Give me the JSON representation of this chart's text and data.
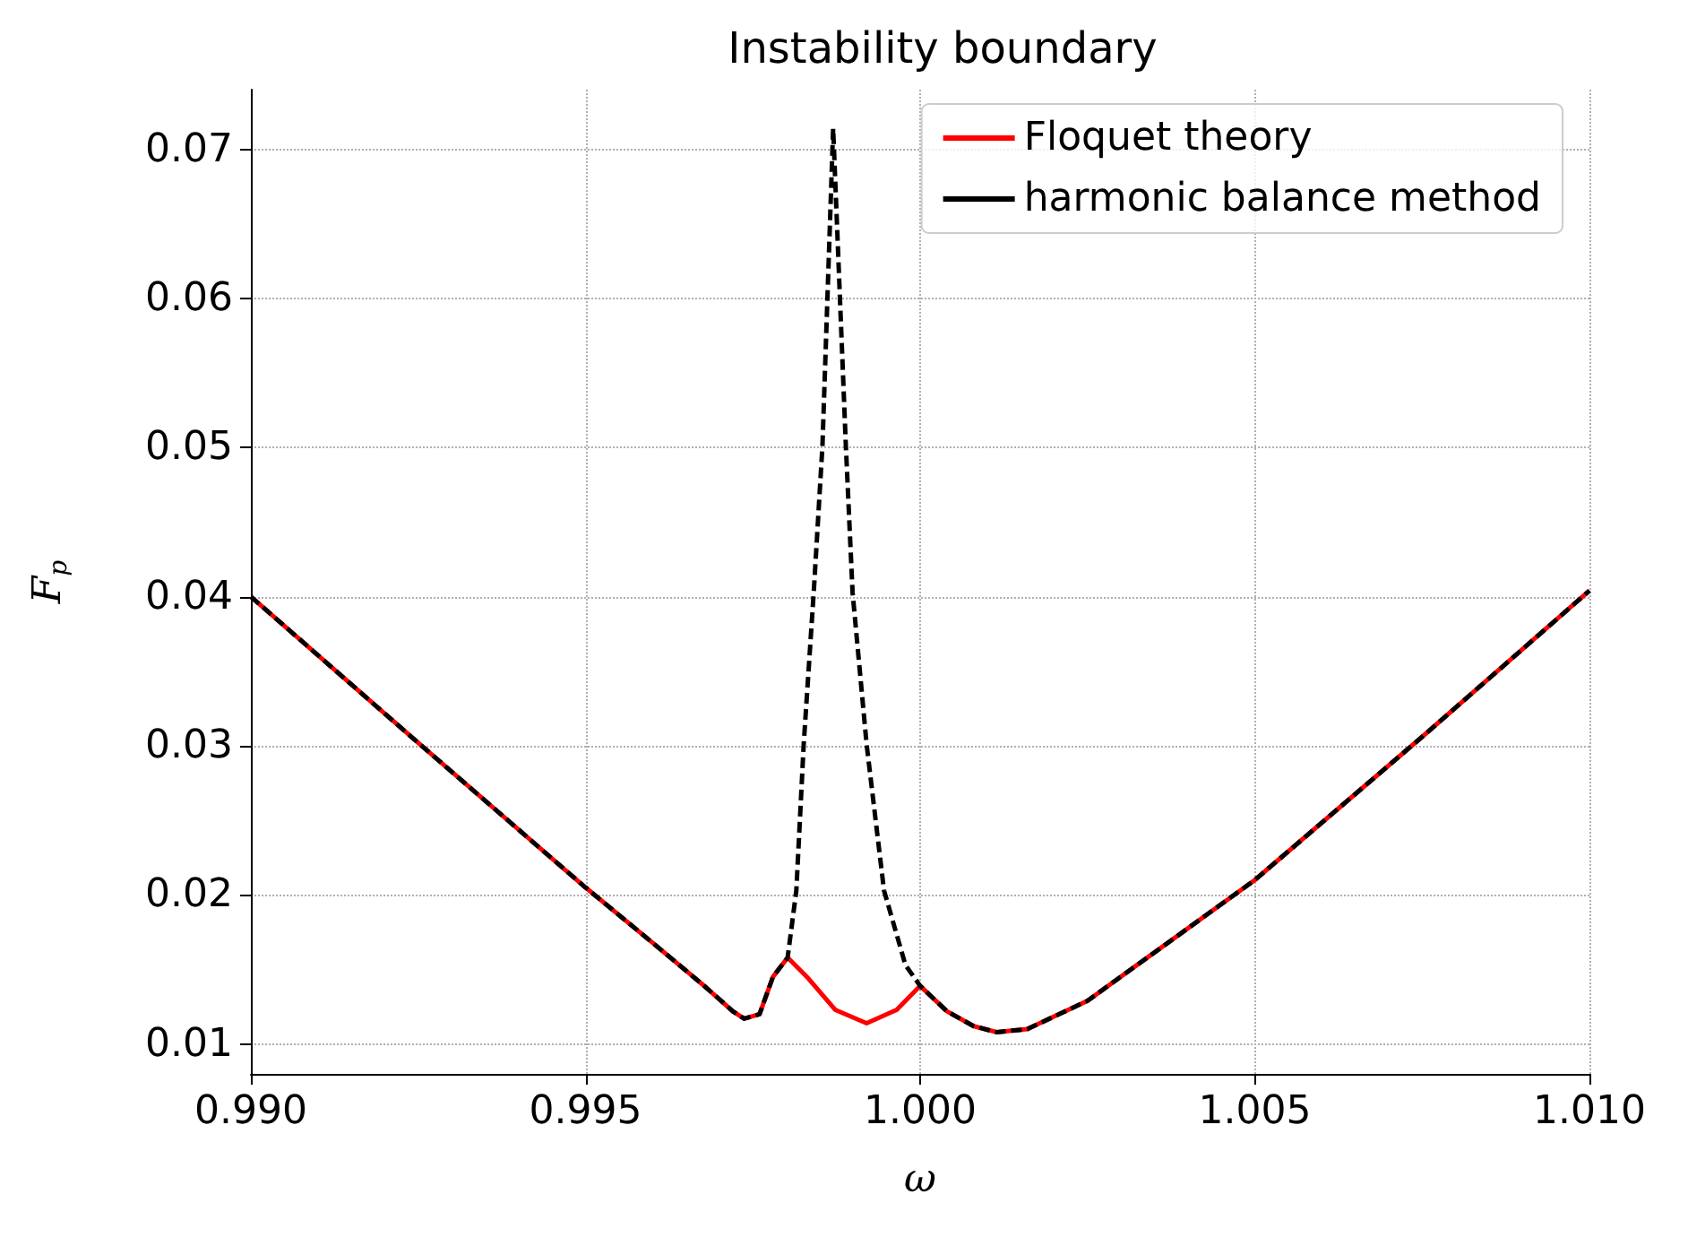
{
  "chart_data": {
    "type": "line",
    "title": "Instability boundary",
    "xlabel": "ω",
    "ylabel": "F$_{p}$",
    "xlim": [
      0.99,
      1.01
    ],
    "xticks": [
      {
        "value": 0.99,
        "label": "0.990"
      },
      {
        "value": 0.995,
        "label": "0.995"
      },
      {
        "value": 1.0,
        "label": "1.000"
      },
      {
        "value": 1.005,
        "label": "1.005"
      },
      {
        "value": 1.01,
        "label": "1.010"
      }
    ],
    "ylim": [
      0.008,
      0.074
    ],
    "yticks": [
      0.01,
      0.02,
      0.03,
      0.04,
      0.05,
      0.06,
      0.07
    ],
    "grid": true,
    "legend": "top right",
    "marker": "none",
    "series": [
      {
        "name": "Floquet theory",
        "color": "#ff0000",
        "line_style": "solid",
        "x": [
          0.99,
          0.9925,
          0.995,
          0.996,
          0.9968,
          0.9972,
          0.99737,
          0.9976,
          0.9978,
          0.99802,
          0.99833,
          0.99873,
          0.9992,
          0.99965,
          1.0,
          1.0004,
          1.0008,
          1.00114,
          1.0016,
          1.0025,
          1.005,
          1.0075,
          1.01
        ],
        "values": [
          0.04,
          0.0302,
          0.0205,
          0.0168,
          0.0138,
          0.0122,
          0.0117,
          0.012,
          0.0145,
          0.0158,
          0.0144,
          0.0123,
          0.0114,
          0.0123,
          0.0139,
          0.0122,
          0.0112,
          0.0108,
          0.011,
          0.0129,
          0.021,
          0.0306,
          0.0404
        ]
      },
      {
        "name": "harmonic balance method",
        "color": "#000000",
        "line_style": "dashed",
        "x": [
          0.99,
          0.9925,
          0.995,
          0.996,
          0.9968,
          0.9972,
          0.99737,
          0.9976,
          0.9978,
          0.99802,
          0.99815,
          0.99826,
          0.99841,
          0.99854,
          0.9987,
          0.99889,
          0.99899,
          0.9992,
          0.99946,
          0.99978,
          1.0,
          1.0004,
          1.0008,
          1.00114,
          1.0016,
          1.0025,
          1.005,
          1.0075,
          1.01
        ],
        "values": [
          0.04,
          0.0302,
          0.0205,
          0.0168,
          0.0138,
          0.0122,
          0.0117,
          0.012,
          0.0145,
          0.0158,
          0.0203,
          0.0301,
          0.0403,
          0.0501,
          0.0714,
          0.0501,
          0.0403,
          0.0301,
          0.0203,
          0.0153,
          0.0139,
          0.0122,
          0.0112,
          0.0108,
          0.011,
          0.0129,
          0.021,
          0.0306,
          0.0404
        ]
      }
    ]
  }
}
